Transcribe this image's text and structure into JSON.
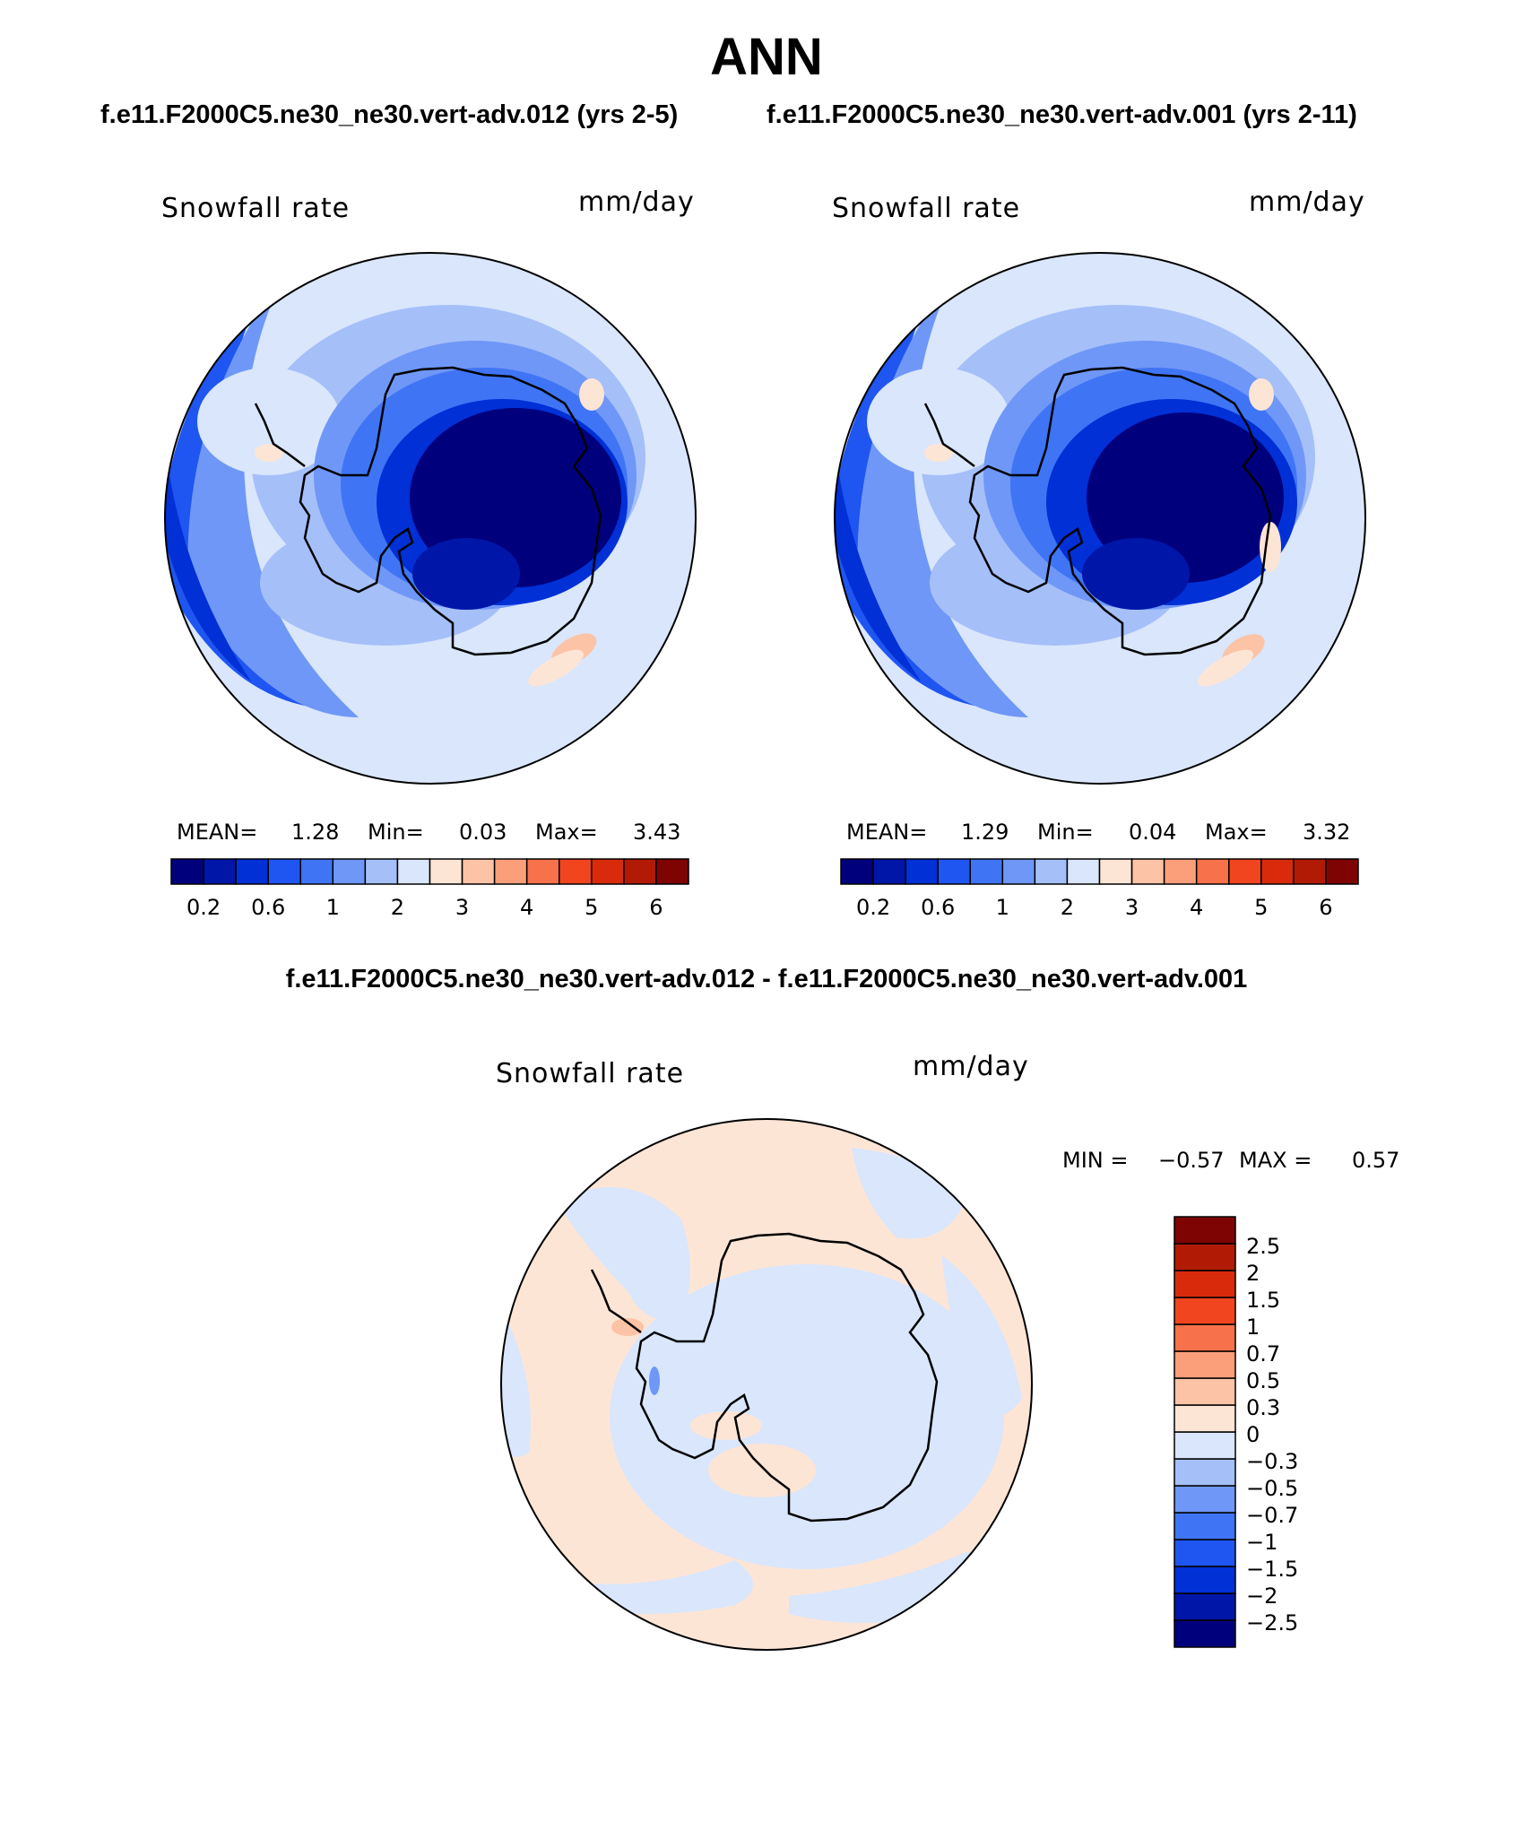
{
  "title": "ANN",
  "cases": {
    "left": "f.e11.F2000C5.ne30_ne30.vert-adv.012 (yrs 2-5)",
    "right": "f.e11.F2000C5.ne30_ne30.vert-adv.001 (yrs 2-11)"
  },
  "diff_title": "f.e11.F2000C5.ne30_ne30.vert-adv.012 - f.e11.F2000C5.ne30_ne30.vert-adv.001",
  "panels": [
    {
      "variable": "Snowfall rate",
      "units": "mm/day",
      "mean_label": "MEAN=",
      "mean": "1.28",
      "min_label": "Min=",
      "min": "0.03",
      "max_label": "Max=",
      "max": "3.43"
    },
    {
      "variable": "Snowfall rate",
      "units": "mm/day",
      "mean_label": "MEAN=",
      "mean": "1.29",
      "min_label": "Min=",
      "min": "0.04",
      "max_label": "Max=",
      "max": "3.32"
    }
  ],
  "diff_panel": {
    "variable": "Snowfall rate",
    "units": "mm/day",
    "min_label": "MIN =",
    "min": "−0.57",
    "max_label": "MAX =",
    "max": "0.57"
  },
  "colorbar": {
    "colors": [
      "#00007d",
      "#0016a8",
      "#0030d6",
      "#1f55f0",
      "#3f75f5",
      "#6f97f7",
      "#a5bff9",
      "#d9e6fc",
      "#fde5d6",
      "#fcc3a6",
      "#fb9e7a",
      "#f7714b",
      "#f0451f",
      "#d92b0c",
      "#b11b05",
      "#7e0404"
    ],
    "ticks": [
      "0.2",
      "0.6",
      "1",
      "2",
      "3",
      "4",
      "5",
      "6"
    ]
  },
  "diff_colorbar": {
    "colors": [
      "#00007d",
      "#0016a8",
      "#0030d6",
      "#1f55f0",
      "#3f75f5",
      "#6f97f7",
      "#a5bff9",
      "#d9e6fc",
      "#fde5d6",
      "#fcc3a6",
      "#fb9e7a",
      "#f7714b",
      "#f0451f",
      "#d92b0c",
      "#b11b05",
      "#7e0404"
    ],
    "ticks": [
      "2.5",
      "2",
      "1.5",
      "1",
      "0.7",
      "0.5",
      "0.3",
      "0",
      "−0.3",
      "−0.5",
      "−0.7",
      "−1",
      "−1.5",
      "−2",
      "−2.5"
    ]
  }
}
